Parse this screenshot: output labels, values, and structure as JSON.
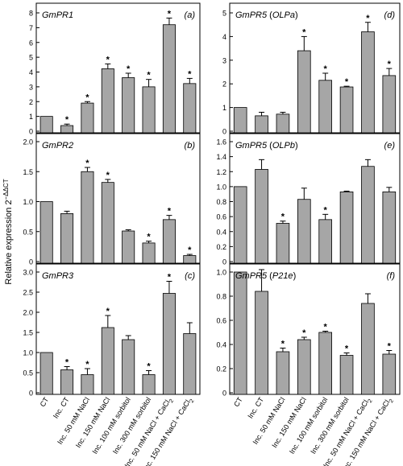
{
  "figure": {
    "ylabel": "Relative expression 2",
    "ylabel_sup": "−ΔΔCT",
    "categories": [
      "CT",
      "Inc. CT",
      "Inc. 50 mM NaCl",
      "Inc. 150 mM NaCl",
      "Inc. 100 mM sorbitol",
      "Inc. 300 mM sorbitol",
      "Inc. 50 mM NaCl + CaCl",
      "Inc. 150 mM NaCl + CaCl"
    ],
    "category_subscripts": [
      "",
      "",
      "",
      "",
      "",
      "",
      "2",
      "2"
    ],
    "bar_color": "#a6a6a6"
  },
  "chart_data": [
    {
      "type": "bar",
      "gene": "GmPR1",
      "gene_suffix": "",
      "panel_label": "(a)",
      "ylim": [
        0,
        8
      ],
      "yticks": [
        "0",
        "1",
        "2",
        "3",
        "4",
        "5",
        "6",
        "7",
        "8"
      ],
      "values": [
        1.0,
        0.38,
        1.9,
        4.22,
        3.62,
        3.0,
        7.2,
        3.22
      ],
      "errors": [
        0.0,
        0.1,
        0.1,
        0.33,
        0.3,
        0.5,
        0.45,
        0.35
      ],
      "significant": [
        false,
        true,
        true,
        true,
        true,
        true,
        true,
        true
      ]
    },
    {
      "type": "bar",
      "gene": "GmPR2",
      "gene_suffix": "",
      "panel_label": "(b)",
      "ylim": [
        0,
        2.0
      ],
      "yticks": [
        "0",
        "0.5",
        "1.0",
        "1.5",
        "2.0"
      ],
      "values": [
        1.0,
        0.8,
        1.5,
        1.32,
        0.51,
        0.31,
        0.7,
        0.1
      ],
      "errors": [
        0.0,
        0.04,
        0.07,
        0.05,
        0.02,
        0.03,
        0.07,
        0.02
      ],
      "significant": [
        false,
        false,
        true,
        true,
        false,
        true,
        true,
        true
      ]
    },
    {
      "type": "bar",
      "gene": "GmPR3",
      "gene_suffix": "",
      "panel_label": "(c)",
      "ylim": [
        0,
        3.0
      ],
      "yticks": [
        "0",
        "0.5",
        "1.0",
        "1.5",
        "2.0",
        "2.5",
        "3.0"
      ],
      "values": [
        1.0,
        0.57,
        0.45,
        1.62,
        1.32,
        0.45,
        2.47,
        1.47
      ],
      "errors": [
        0.0,
        0.08,
        0.15,
        0.3,
        0.1,
        0.1,
        0.3,
        0.27
      ],
      "significant": [
        false,
        true,
        true,
        true,
        false,
        true,
        true,
        false
      ]
    },
    {
      "type": "bar",
      "gene": "GmPR5",
      "gene_suffix": "OLPa",
      "panel_label": "(d)",
      "ylim": [
        0,
        5
      ],
      "yticks": [
        "0",
        "1",
        "2",
        "3",
        "4",
        "5"
      ],
      "values": [
        1.0,
        0.65,
        0.72,
        3.4,
        2.15,
        1.87,
        4.2,
        2.35
      ],
      "errors": [
        0.0,
        0.15,
        0.08,
        0.6,
        0.3,
        0.03,
        0.4,
        0.3
      ],
      "significant": [
        false,
        false,
        false,
        true,
        true,
        true,
        true,
        true
      ]
    },
    {
      "type": "bar",
      "gene": "GmPR5",
      "gene_suffix": "OLPb",
      "panel_label": "(e)",
      "ylim": [
        0,
        1.6
      ],
      "yticks": [
        "0",
        "0.2",
        "0.4",
        "0.6",
        "0.8",
        "1.0",
        "1.2",
        "1.4",
        "1.6"
      ],
      "values": [
        1.0,
        1.23,
        0.51,
        0.83,
        0.56,
        0.93,
        1.27,
        0.93
      ],
      "errors": [
        0.0,
        0.13,
        0.03,
        0.15,
        0.07,
        0.01,
        0.09,
        0.06
      ],
      "significant": [
        false,
        false,
        true,
        false,
        true,
        false,
        false,
        false
      ]
    },
    {
      "type": "bar",
      "gene": "GmPR5",
      "gene_suffix": "P21e",
      "panel_label": "(f)",
      "ylim": [
        0,
        1.0
      ],
      "yticks": [
        "0",
        "0.2",
        "0.4",
        "0.6",
        "0.8",
        "1.0"
      ],
      "values": [
        1.0,
        0.84,
        0.34,
        0.44,
        0.5,
        0.31,
        0.74,
        0.32
      ],
      "errors": [
        0.0,
        0.18,
        0.03,
        0.02,
        0.01,
        0.02,
        0.08,
        0.03
      ],
      "significant": [
        false,
        false,
        true,
        true,
        true,
        true,
        false,
        true
      ]
    }
  ]
}
